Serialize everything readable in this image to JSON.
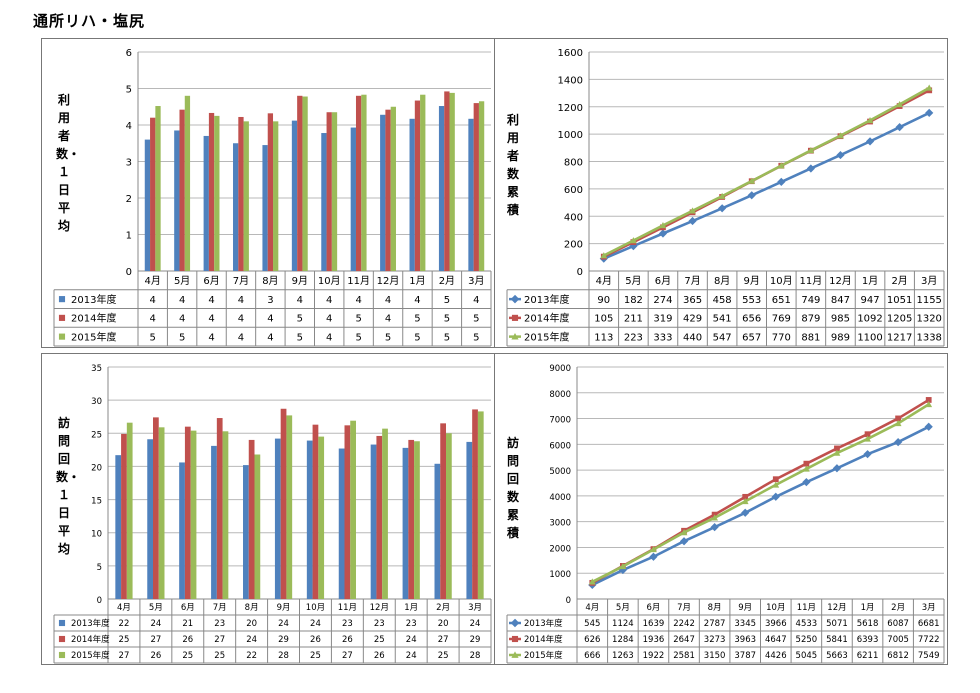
{
  "page": {
    "title": "通所リハ・塩尻"
  },
  "colors": {
    "s2013": "#4F81BD",
    "s2014": "#C0504D",
    "s2015": "#9BBB59"
  },
  "chart_data": [
    {
      "id": "c1",
      "type": "bar",
      "ylabel": "利用者数・１日平均",
      "ylim": [
        0,
        6
      ],
      "yticks": [
        0,
        1,
        2,
        3,
        4,
        5,
        6
      ],
      "grid": true,
      "legend": "table-left",
      "categories": [
        "4月",
        "5月",
        "6月",
        "7月",
        "8月",
        "9月",
        "10月",
        "11月",
        "12月",
        "1月",
        "2月",
        "3月"
      ],
      "series": [
        {
          "name": "2013年度",
          "values": [
            3.6,
            3.85,
            3.7,
            3.5,
            3.45,
            4.12,
            3.78,
            3.93,
            4.28,
            4.17,
            4.52,
            4.17
          ],
          "table": [
            "4",
            "4",
            "4",
            "4",
            "3",
            "4",
            "4",
            "4",
            "4",
            "4",
            "5",
            "4"
          ]
        },
        {
          "name": "2014年度",
          "values": [
            4.2,
            4.42,
            4.33,
            4.22,
            4.32,
            4.8,
            4.35,
            4.8,
            4.42,
            4.67,
            4.92,
            4.6
          ],
          "table": [
            "4",
            "4",
            "4",
            "4",
            "4",
            "5",
            "4",
            "5",
            "4",
            "5",
            "5",
            "5"
          ]
        },
        {
          "name": "2015年度",
          "values": [
            4.52,
            4.8,
            4.25,
            4.1,
            4.1,
            4.78,
            4.35,
            4.83,
            4.5,
            4.83,
            4.88,
            4.65
          ],
          "table": [
            "5",
            "5",
            "4",
            "4",
            "4",
            "5",
            "4",
            "5",
            "5",
            "5",
            "5",
            "5"
          ]
        }
      ]
    },
    {
      "id": "c2",
      "type": "line",
      "ylabel": "利用者数 累積",
      "ylim": [
        0,
        1600
      ],
      "yticks": [
        0,
        200,
        400,
        600,
        800,
        1000,
        1200,
        1400,
        1600
      ],
      "grid": true,
      "legend": "table-left",
      "categories": [
        "4月",
        "5月",
        "6月",
        "7月",
        "8月",
        "9月",
        "10月",
        "11月",
        "12月",
        "1月",
        "2月",
        "3月"
      ],
      "series": [
        {
          "name": "2013年度",
          "values": [
            90,
            182,
            274,
            365,
            458,
            553,
            651,
            749,
            847,
            947,
            1051,
            1155
          ]
        },
        {
          "name": "2014年度",
          "values": [
            105,
            211,
            319,
            429,
            541,
            656,
            769,
            879,
            985,
            1092,
            1205,
            1320
          ]
        },
        {
          "name": "2015年度",
          "values": [
            113,
            223,
            333,
            440,
            547,
            657,
            770,
            881,
            989,
            1100,
            1217,
            1338
          ]
        }
      ]
    },
    {
      "id": "c3",
      "type": "bar",
      "ylabel": "訪問回数・１日平均",
      "ylim": [
        0,
        35
      ],
      "yticks": [
        0,
        5,
        10,
        15,
        20,
        25,
        30,
        35
      ],
      "grid": true,
      "legend": "table-left",
      "categories": [
        "4月",
        "5月",
        "6月",
        "7月",
        "8月",
        "9月",
        "10月",
        "11月",
        "12月",
        "1月",
        "2月",
        "3月"
      ],
      "series": [
        {
          "name": "2013年度",
          "values": [
            21.7,
            24.1,
            20.6,
            23.1,
            20.2,
            24.2,
            23.9,
            22.7,
            23.3,
            22.8,
            20.4,
            23.7
          ],
          "table": [
            "22",
            "24",
            "21",
            "23",
            "20",
            "24",
            "24",
            "23",
            "23",
            "23",
            "20",
            "24"
          ]
        },
        {
          "name": "2014年度",
          "values": [
            24.9,
            27.4,
            26.0,
            27.3,
            24.0,
            28.7,
            26.3,
            26.2,
            24.6,
            24.0,
            26.5,
            28.6
          ],
          "table": [
            "25",
            "27",
            "26",
            "27",
            "24",
            "29",
            "26",
            "26",
            "25",
            "24",
            "27",
            "29"
          ]
        },
        {
          "name": "2015年度",
          "values": [
            26.6,
            25.9,
            25.4,
            25.3,
            21.8,
            27.7,
            24.5,
            26.9,
            25.7,
            23.8,
            25.0,
            28.3
          ],
          "table": [
            "27",
            "26",
            "25",
            "25",
            "22",
            "28",
            "25",
            "27",
            "26",
            "24",
            "25",
            "28"
          ]
        }
      ]
    },
    {
      "id": "c4",
      "type": "line",
      "ylabel": "訪問回数 累積",
      "ylim": [
        0,
        9000
      ],
      "yticks": [
        0,
        1000,
        2000,
        3000,
        4000,
        5000,
        6000,
        7000,
        8000,
        9000
      ],
      "grid": true,
      "legend": "table-left",
      "categories": [
        "4月",
        "5月",
        "6月",
        "7月",
        "8月",
        "9月",
        "10月",
        "11月",
        "12月",
        "1月",
        "2月",
        "3月"
      ],
      "series": [
        {
          "name": "2013年度",
          "values": [
            545,
            1124,
            1639,
            2242,
            2787,
            3345,
            3966,
            4533,
            5071,
            5618,
            6087,
            6681
          ]
        },
        {
          "name": "2014年度",
          "values": [
            626,
            1284,
            1936,
            2647,
            3273,
            3963,
            4647,
            5250,
            5841,
            6393,
            7005,
            7722
          ]
        },
        {
          "name": "2015年度",
          "values": [
            666,
            1263,
            1922,
            2581,
            3150,
            3787,
            4426,
            5045,
            5663,
            6211,
            6812,
            7549
          ]
        }
      ]
    }
  ]
}
